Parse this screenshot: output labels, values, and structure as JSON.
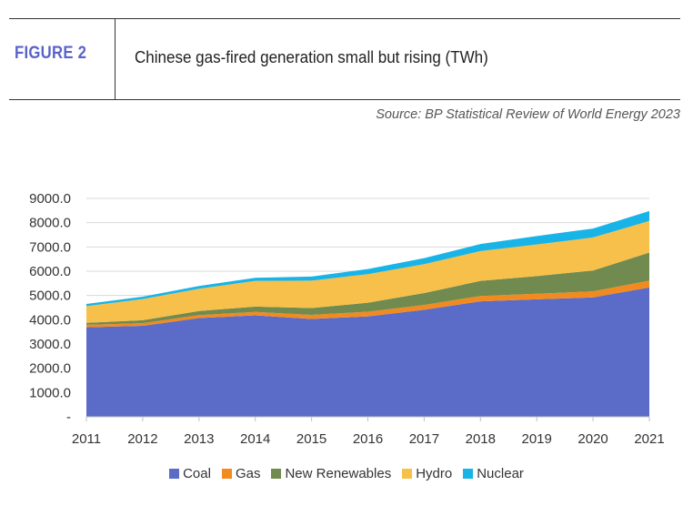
{
  "header": {
    "figure_label": "FIGURE 2",
    "title": "Chinese gas-fired generation small but rising (TWh)",
    "source": "Source: BP Statistical Review of World Energy 2023"
  },
  "chart_data": {
    "type": "area",
    "stacked": true,
    "title": "Chinese gas-fired generation small but rising (TWh)",
    "x": [
      "2011",
      "2012",
      "2013",
      "2014",
      "2015",
      "2016",
      "2017",
      "2018",
      "2019",
      "2020",
      "2021"
    ],
    "ylim": [
      0,
      9000
    ],
    "yticks": [
      "-",
      "1000.0",
      "2000.0",
      "3000.0",
      "4000.0",
      "5000.0",
      "6000.0",
      "7000.0",
      "8000.0",
      "9000.0"
    ],
    "grid": true,
    "legend_position": "bottom",
    "series": [
      {
        "name": "Coal",
        "color": "#5b6bc8",
        "values": [
          3690,
          3750,
          4070,
          4180,
          4030,
          4140,
          4410,
          4760,
          4840,
          4920,
          5330
        ]
      },
      {
        "name": "Gas",
        "color": "#f28a1f",
        "values": [
          100,
          110,
          120,
          140,
          170,
          190,
          200,
          220,
          230,
          250,
          280
        ]
      },
      {
        "name": "New Renewables",
        "color": "#718a4f",
        "values": [
          80,
          120,
          170,
          220,
          280,
          370,
          490,
          620,
          730,
          860,
          1160
        ]
      },
      {
        "name": "Hydro",
        "color": "#f7c04a",
        "values": [
          690,
          870,
          920,
          1060,
          1130,
          1180,
          1190,
          1230,
          1300,
          1360,
          1300
        ]
      },
      {
        "name": "Nuclear",
        "color": "#18b4e8",
        "values": [
          90,
          100,
          110,
          130,
          170,
          210,
          250,
          290,
          350,
          370,
          410
        ]
      }
    ]
  }
}
